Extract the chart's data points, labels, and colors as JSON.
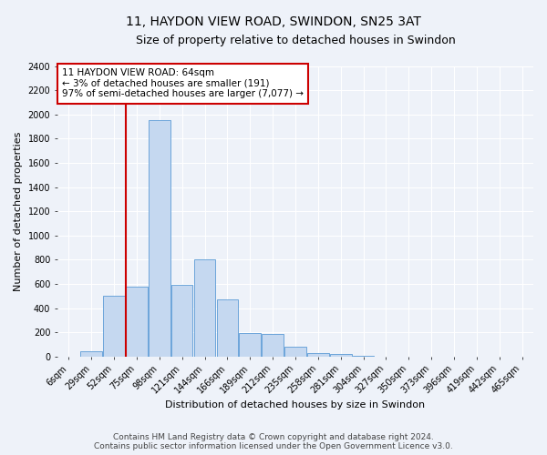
{
  "title": "11, HAYDON VIEW ROAD, SWINDON, SN25 3AT",
  "subtitle": "Size of property relative to detached houses in Swindon",
  "xlabel": "Distribution of detached houses by size in Swindon",
  "ylabel": "Number of detached properties",
  "footer_line1": "Contains HM Land Registry data © Crown copyright and database right 2024.",
  "footer_line2": "Contains public sector information licensed under the Open Government Licence v3.0.",
  "annotation_title": "11 HAYDON VIEW ROAD: 64sqm",
  "annotation_line2": "← 3% of detached houses are smaller (191)",
  "annotation_line3": "97% of semi-detached houses are larger (7,077) →",
  "bar_color": "#c5d8f0",
  "bar_edge_color": "#5b9bd5",
  "vline_color": "#cc0000",
  "annotation_box_color": "#cc0000",
  "bar_data": [
    {
      "label": "6sqm",
      "value": 0
    },
    {
      "label": "29sqm",
      "value": 45
    },
    {
      "label": "52sqm",
      "value": 500
    },
    {
      "label": "75sqm",
      "value": 580
    },
    {
      "label": "98sqm",
      "value": 1950
    },
    {
      "label": "121sqm",
      "value": 590
    },
    {
      "label": "144sqm",
      "value": 800
    },
    {
      "label": "166sqm",
      "value": 470
    },
    {
      "label": "189sqm",
      "value": 195
    },
    {
      "label": "212sqm",
      "value": 185
    },
    {
      "label": "235sqm",
      "value": 85
    },
    {
      "label": "258sqm",
      "value": 30
    },
    {
      "label": "281sqm",
      "value": 20
    },
    {
      "label": "304sqm",
      "value": 5
    },
    {
      "label": "327sqm",
      "value": 0
    },
    {
      "label": "350sqm",
      "value": 0
    },
    {
      "label": "373sqm",
      "value": 0
    },
    {
      "label": "396sqm",
      "value": 0
    },
    {
      "label": "419sqm",
      "value": 0
    },
    {
      "label": "442sqm",
      "value": 0
    },
    {
      "label": "465sqm",
      "value": 0
    }
  ],
  "ylim": [
    0,
    2400
  ],
  "yticks": [
    0,
    200,
    400,
    600,
    800,
    1000,
    1200,
    1400,
    1600,
    1800,
    2000,
    2200,
    2400
  ],
  "vline_x_index": 2.5,
  "background_color": "#eef2f9",
  "plot_bg_color": "#eef2f9",
  "grid_color": "#ffffff",
  "title_fontsize": 10,
  "subtitle_fontsize": 9,
  "axis_label_fontsize": 8,
  "tick_fontsize": 7,
  "annotation_fontsize": 7.5,
  "footer_fontsize": 6.5
}
